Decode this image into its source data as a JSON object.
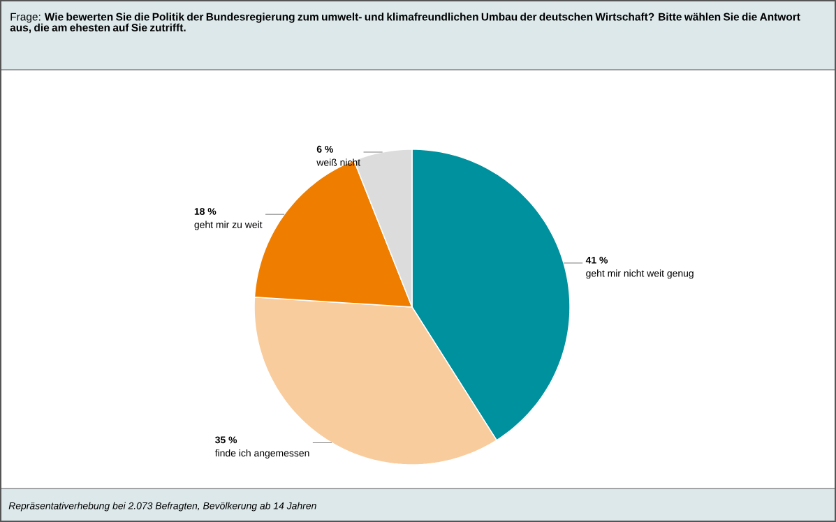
{
  "chart_data": {
    "type": "pie",
    "title": "Frage: **Wie bewerten Sie die Politik der Bundesregierung zum umwelt- und klimafreundlichen Umbau der deutschen Wirtschaft? Bitte wählen Sie die Antwort aus, die am ehesten auf Sie zutrifft.**",
    "categories": [
      "geht mir nicht weit genug",
      "finde ich angemessen",
      "geht mir zu weit",
      "weiß nicht"
    ],
    "values": [
      41,
      35,
      18,
      6
    ],
    "colors": [
      "#00919e",
      "#f9cc9d",
      "#ef7d00",
      "#dcdcdc"
    ],
    "value_labels": [
      "41 %",
      "35 %",
      "18 %",
      "6 %"
    ],
    "annotations": [
      "Repräsentativerhebung bei 2.073 Befragten, Bevölkerung ab 14 Jahren"
    ]
  }
}
